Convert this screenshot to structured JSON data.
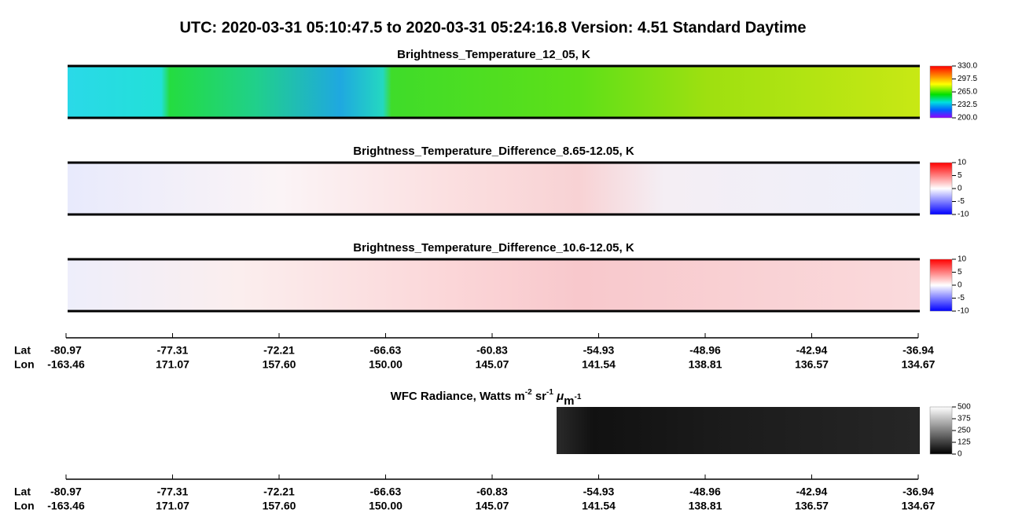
{
  "title": "UTC:  2020-03-31   05:10:47.5  to  2020-03-31   05:24:16.8    Version: 4.51  Standard Daytime",
  "panels": [
    {
      "title": "Brightness_Temperature_12_05, K",
      "colorbar": [
        "330.0",
        "297.5",
        "265.0",
        "232.5",
        "200.0"
      ]
    },
    {
      "title": "Brightness_Temperature_Difference_8.65-12.05, K",
      "colorbar": [
        "10",
        "5",
        "0",
        "-5",
        "-10"
      ]
    },
    {
      "title": "Brightness_Temperature_Difference_10.6-12.05, K",
      "colorbar": [
        "10",
        "5",
        "0",
        "-5",
        "-10"
      ]
    }
  ],
  "wfc": {
    "title": [
      "WFC Radiance, Watts m",
      "-2",
      " sr",
      "-1",
      " μ",
      "m",
      "-1"
    ],
    "colorbar": [
      "500",
      "375",
      "250",
      "125",
      "0"
    ]
  },
  "axes": [
    {
      "lat_label": "Lat",
      "lon_label": "Lon",
      "lat": [
        "-80.97",
        "-77.31",
        "-72.21",
        "-66.63",
        "-60.83",
        "-54.93",
        "-48.96",
        "-42.94",
        "-36.94"
      ],
      "lon": [
        "-163.46",
        "171.07",
        "157.60",
        "150.00",
        "145.07",
        "141.54",
        "138.81",
        "136.57",
        "134.67"
      ]
    },
    {
      "lat_label": "Lat",
      "lon_label": "Lon",
      "lat": [
        "-80.97",
        "-77.31",
        "-72.21",
        "-66.63",
        "-60.83",
        "-54.93",
        "-48.96",
        "-42.94",
        "-36.94"
      ],
      "lon": [
        "-163.46",
        "171.07",
        "157.60",
        "150.00",
        "145.07",
        "141.54",
        "138.81",
        "136.57",
        "134.67"
      ]
    }
  ]
}
